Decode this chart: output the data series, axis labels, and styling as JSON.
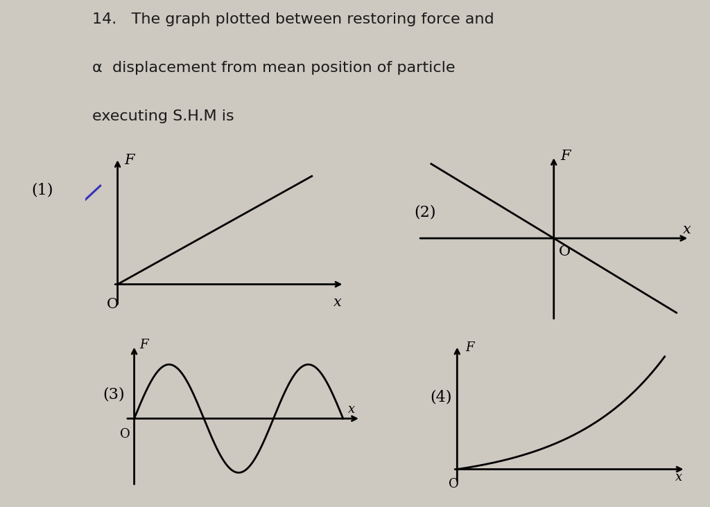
{
  "bg_color": "#cdc8c0",
  "line_color": "#000000",
  "text_color": "#1a1a1a",
  "label_color_1": "#3333bb",
  "title_line1": "14.   The graph plotted between restoring force and",
  "title_line2": "α  displacement from mean position of particle",
  "title_line3": "executing S.H.M is",
  "title_fontsize": 16,
  "label_fontsize": 15,
  "graph_label_fontsize": 16,
  "axis_lw": 2.0,
  "graph_lw": 2.0
}
